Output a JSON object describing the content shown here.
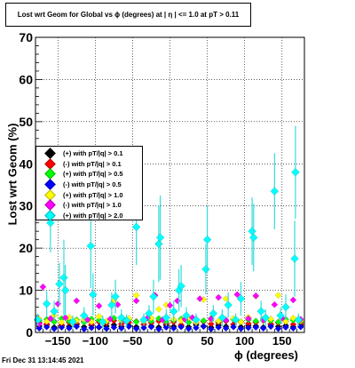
{
  "title": "Lost wrt Geom for Global vs ϕ (degrees) at |  η | <= 1.0 at pT > 0.11",
  "footer_date": "Fri Dec 31 13:14:45 2021",
  "chart_data": {
    "type": "scatter",
    "title": "Lost wrt Geom for Global vs ϕ (degrees) at |  η | <= 1.0 at pT > 0.11",
    "xlabel": "ϕ (degrees)",
    "ylabel": "Lost wrt Geom (%)",
    "xlim": [
      -180,
      180
    ],
    "ylim": [
      0,
      70
    ],
    "x_ticks": [
      -150,
      -100,
      -50,
      0,
      50,
      100,
      150
    ],
    "x_tick_labels": [
      "−150",
      "−100",
      "−50",
      "0",
      "50",
      "100",
      "150"
    ],
    "y_ticks": [
      0,
      10,
      20,
      30,
      40,
      50,
      60,
      70
    ],
    "y_tick_labels": [
      "0",
      "10",
      "20",
      "30",
      "40",
      "50",
      "60",
      "70"
    ],
    "grid": true,
    "legend_position": "middle-left",
    "series": [
      {
        "name": "(+) with pT/|q| > 0.1",
        "color": "#000000",
        "points": [
          [
            -175,
            1.5
          ],
          [
            -165,
            1.8
          ],
          [
            -155,
            1.2
          ],
          [
            -145,
            1.6
          ],
          [
            -135,
            1.4
          ],
          [
            -125,
            1.9
          ],
          [
            -115,
            1.3
          ],
          [
            -105,
            1.7
          ],
          [
            -95,
            1.2
          ],
          [
            -85,
            1.5
          ],
          [
            -75,
            1.8
          ],
          [
            -65,
            1.4
          ],
          [
            -55,
            1.6
          ],
          [
            -45,
            1.3
          ],
          [
            -35,
            1.9
          ],
          [
            -25,
            1.5
          ],
          [
            -15,
            1.2
          ],
          [
            -5,
            1.7
          ],
          [
            5,
            1.4
          ],
          [
            15,
            1.6
          ],
          [
            25,
            1.3
          ],
          [
            35,
            1.8
          ],
          [
            45,
            1.5
          ],
          [
            55,
            1.2
          ],
          [
            65,
            1.7
          ],
          [
            75,
            1.4
          ],
          [
            85,
            1.9
          ],
          [
            95,
            1.3
          ],
          [
            105,
            1.6
          ],
          [
            115,
            1.5
          ],
          [
            125,
            1.2
          ],
          [
            135,
            1.8
          ],
          [
            145,
            1.4
          ],
          [
            155,
            1.6
          ],
          [
            165,
            1.3
          ],
          [
            175,
            1.7
          ]
        ]
      },
      {
        "name": "(-) with pT/|q| > 0.1",
        "color": "#ff0000",
        "points": [
          [
            -175,
            2.3
          ],
          [
            -165,
            2.0
          ],
          [
            -155,
            2.6
          ],
          [
            -145,
            1.8
          ],
          [
            -135,
            2.4
          ],
          [
            -125,
            2.1
          ],
          [
            -115,
            2.7
          ],
          [
            -105,
            1.9
          ],
          [
            -95,
            2.5
          ],
          [
            -85,
            2.2
          ],
          [
            -75,
            2.8
          ],
          [
            -65,
            2.0
          ],
          [
            -55,
            2.4
          ],
          [
            -45,
            2.6
          ],
          [
            -35,
            1.9
          ],
          [
            -25,
            2.3
          ],
          [
            -15,
            2.7
          ],
          [
            -5,
            2.1
          ],
          [
            5,
            2.5
          ],
          [
            15,
            1.8
          ],
          [
            25,
            2.4
          ],
          [
            35,
            2.2
          ],
          [
            45,
            2.6
          ],
          [
            55,
            2.0
          ],
          [
            65,
            2.3
          ],
          [
            75,
            2.7
          ],
          [
            85,
            1.9
          ],
          [
            95,
            2.5
          ],
          [
            105,
            2.1
          ],
          [
            115,
            2.4
          ],
          [
            125,
            2.8
          ],
          [
            135,
            2.0
          ],
          [
            145,
            2.3
          ],
          [
            155,
            2.6
          ],
          [
            165,
            1.9
          ],
          [
            175,
            2.2
          ]
        ]
      },
      {
        "name": "(+) with pT/|q| > 0.5",
        "color": "#00ff00",
        "points": [
          [
            -175,
            2.8
          ],
          [
            -165,
            3.1
          ],
          [
            -155,
            2.5
          ],
          [
            -145,
            3.3
          ],
          [
            -135,
            2.7
          ],
          [
            -125,
            3.0
          ],
          [
            -115,
            2.4
          ],
          [
            -105,
            3.2
          ],
          [
            -95,
            2.9
          ],
          [
            -85,
            2.6
          ],
          [
            -75,
            3.4
          ],
          [
            -65,
            2.8
          ],
          [
            -55,
            3.1
          ],
          [
            -45,
            2.5
          ],
          [
            -35,
            3.0
          ],
          [
            -25,
            2.7
          ],
          [
            -15,
            3.3
          ],
          [
            -5,
            2.6
          ],
          [
            5,
            2.9
          ],
          [
            15,
            3.2
          ],
          [
            25,
            2.4
          ],
          [
            35,
            3.0
          ],
          [
            45,
            2.8
          ],
          [
            55,
            3.3
          ],
          [
            65,
            2.6
          ],
          [
            75,
            2.9
          ],
          [
            85,
            3.1
          ],
          [
            95,
            2.5
          ],
          [
            105,
            3.0
          ],
          [
            115,
            2.7
          ],
          [
            125,
            3.2
          ],
          [
            135,
            2.8
          ],
          [
            145,
            2.5
          ],
          [
            155,
            3.1
          ],
          [
            165,
            2.9
          ],
          [
            175,
            2.6
          ]
        ]
      },
      {
        "name": "(-) with pT/|q| > 0.5",
        "color": "#0000ff",
        "points": [
          [
            -175,
            1.0
          ],
          [
            -165,
            1.3
          ],
          [
            -155,
            0.9
          ],
          [
            -145,
            1.2
          ],
          [
            -135,
            1.0
          ],
          [
            -125,
            1.4
          ],
          [
            -115,
            0.8
          ],
          [
            -105,
            1.1
          ],
          [
            -95,
            1.3
          ],
          [
            -85,
            0.9
          ],
          [
            -75,
            1.2
          ],
          [
            -65,
            1.0
          ],
          [
            -55,
            1.4
          ],
          [
            -45,
            0.9
          ],
          [
            -35,
            1.1
          ],
          [
            -25,
            1.3
          ],
          [
            -15,
            0.8
          ],
          [
            -5,
            1.2
          ],
          [
            5,
            1.0
          ],
          [
            15,
            1.3
          ],
          [
            25,
            0.9
          ],
          [
            35,
            1.1
          ],
          [
            45,
            1.4
          ],
          [
            55,
            0.8
          ],
          [
            65,
            1.2
          ],
          [
            75,
            1.0
          ],
          [
            85,
            1.3
          ],
          [
            95,
            0.9
          ],
          [
            105,
            1.1
          ],
          [
            115,
            1.2
          ],
          [
            125,
            1.0
          ],
          [
            135,
            1.4
          ],
          [
            145,
            0.9
          ],
          [
            155,
            1.2
          ],
          [
            165,
            1.0
          ],
          [
            175,
            1.3
          ]
        ]
      },
      {
        "name": "(+) with pT/|q| > 1.0",
        "color": "#ffff00",
        "points": [
          [
            -175,
            3.2
          ],
          [
            -165,
            2.6
          ],
          [
            -155,
            4.0
          ],
          [
            -145,
            2.4
          ],
          [
            -135,
            3.6
          ],
          [
            -125,
            2.8
          ],
          [
            -115,
            3.0
          ],
          [
            -105,
            2.5
          ],
          [
            -95,
            3.8
          ],
          [
            -85,
            2.7
          ],
          [
            -75,
            7.5
          ],
          [
            -65,
            2.9
          ],
          [
            -55,
            3.3
          ],
          [
            -45,
            8.8
          ],
          [
            -35,
            2.6
          ],
          [
            -25,
            3.4
          ],
          [
            -15,
            5.5
          ],
          [
            -5,
            6.5
          ],
          [
            5,
            3.1
          ],
          [
            15,
            2.8
          ],
          [
            25,
            3.5
          ],
          [
            35,
            2.4
          ],
          [
            45,
            7.8
          ],
          [
            55,
            3.0
          ],
          [
            65,
            2.7
          ],
          [
            75,
            8.0
          ],
          [
            85,
            3.3
          ],
          [
            95,
            2.5
          ],
          [
            105,
            3.6
          ],
          [
            115,
            8.6
          ],
          [
            125,
            2.9
          ],
          [
            135,
            3.2
          ],
          [
            145,
            8.8
          ],
          [
            155,
            2.6
          ],
          [
            165,
            3.4
          ],
          [
            175,
            2.8
          ]
        ]
      },
      {
        "name": "(-) with pT/|q| > 1.0",
        "color": "#ff00ff",
        "points": [
          [
            -175,
            2.0
          ],
          [
            -170,
            10.8
          ],
          [
            -160,
            3.3
          ],
          [
            -150,
            6.8
          ],
          [
            -140,
            3.5
          ],
          [
            -125,
            7.5
          ],
          [
            -110,
            3.0
          ],
          [
            -95,
            6.3
          ],
          [
            -80,
            3.2
          ],
          [
            -70,
            6.6
          ],
          [
            -60,
            2.8
          ],
          [
            -45,
            7.5
          ],
          [
            -30,
            3.4
          ],
          [
            -20,
            8.8
          ],
          [
            -10,
            3.0
          ],
          [
            0,
            6.4
          ],
          [
            10,
            7.5
          ],
          [
            20,
            3.1
          ],
          [
            30,
            3.5
          ],
          [
            40,
            8.0
          ],
          [
            55,
            3.2
          ],
          [
            65,
            8.3
          ],
          [
            75,
            2.9
          ],
          [
            90,
            9.0
          ],
          [
            105,
            3.3
          ],
          [
            115,
            8.7
          ],
          [
            125,
            3.0
          ],
          [
            140,
            6.6
          ],
          [
            150,
            3.4
          ],
          [
            165,
            7.7
          ],
          [
            175,
            3.1
          ]
        ]
      },
      {
        "name": "(+) with pT/|q| > 2.0",
        "color": "#00ffff",
        "error_color": "#33dddd",
        "points": [
          {
            "x": -177,
            "y": 3.0,
            "err": 1.5
          },
          {
            "x": -165,
            "y": 6.8,
            "err": 3.0
          },
          {
            "x": -160,
            "y": 26.0,
            "err": 7.0
          },
          {
            "x": -155,
            "y": 5.0,
            "err": 2.5
          },
          {
            "x": -148,
            "y": 11.5,
            "err": 5.0
          },
          {
            "x": -142,
            "y": 13.0,
            "err": 9.0
          },
          {
            "x": -140,
            "y": 10.0,
            "err": 6.0
          },
          {
            "x": -130,
            "y": 2.5,
            "err": 1.5
          },
          {
            "x": -115,
            "y": 4.0,
            "err": 2.0
          },
          {
            "x": -106,
            "y": 20.5,
            "err": 10.0
          },
          {
            "x": -103,
            "y": 9.0,
            "err": 5.0
          },
          {
            "x": -90,
            "y": 2.5,
            "err": 1.5
          },
          {
            "x": -78,
            "y": 6.5,
            "err": 3.0
          },
          {
            "x": -73,
            "y": 8.5,
            "err": 4.0
          },
          {
            "x": -65,
            "y": 3.5,
            "err": 2.0
          },
          {
            "x": -58,
            "y": 2.8,
            "err": 1.5
          },
          {
            "x": -45,
            "y": 25.0,
            "err": 9.0
          },
          {
            "x": -35,
            "y": 3.0,
            "err": 1.5
          },
          {
            "x": -28,
            "y": 4.5,
            "err": 2.0
          },
          {
            "x": -22,
            "y": 8.5,
            "err": 4.0
          },
          {
            "x": -15,
            "y": 21.0,
            "err": 9.0
          },
          {
            "x": -13,
            "y": 22.5,
            "err": 10.0
          },
          {
            "x": -5,
            "y": 3.5,
            "err": 2.0
          },
          {
            "x": 5,
            "y": 5.0,
            "err": 2.5
          },
          {
            "x": 12,
            "y": 10.0,
            "err": 5.0
          },
          {
            "x": 15,
            "y": 11.0,
            "err": 5.0
          },
          {
            "x": 22,
            "y": 4.0,
            "err": 2.0
          },
          {
            "x": 35,
            "y": 3.0,
            "err": 1.5
          },
          {
            "x": 48,
            "y": 15.0,
            "err": 6.0
          },
          {
            "x": 50,
            "y": 22.0,
            "err": 8.0
          },
          {
            "x": 58,
            "y": 4.5,
            "err": 2.0
          },
          {
            "x": 70,
            "y": 3.5,
            "err": 2.0
          },
          {
            "x": 78,
            "y": 6.5,
            "err": 3.0
          },
          {
            "x": 88,
            "y": 3.0,
            "err": 1.5
          },
          {
            "x": 95,
            "y": 8.0,
            "err": 4.0
          },
          {
            "x": 110,
            "y": 24.0,
            "err": 8.0
          },
          {
            "x": 112,
            "y": 22.5,
            "err": 8.0
          },
          {
            "x": 122,
            "y": 5.0,
            "err": 2.5
          },
          {
            "x": 128,
            "y": 3.5,
            "err": 2.0
          },
          {
            "x": 140,
            "y": 33.5,
            "err": 9.0
          },
          {
            "x": 148,
            "y": 4.0,
            "err": 2.0
          },
          {
            "x": 155,
            "y": 6.0,
            "err": 3.0
          },
          {
            "x": 167,
            "y": 17.5,
            "err": 9.0
          },
          {
            "x": 168,
            "y": 38.0,
            "err": 11.0
          },
          {
            "x": 172,
            "y": 3.0,
            "err": 1.5
          }
        ]
      }
    ]
  }
}
